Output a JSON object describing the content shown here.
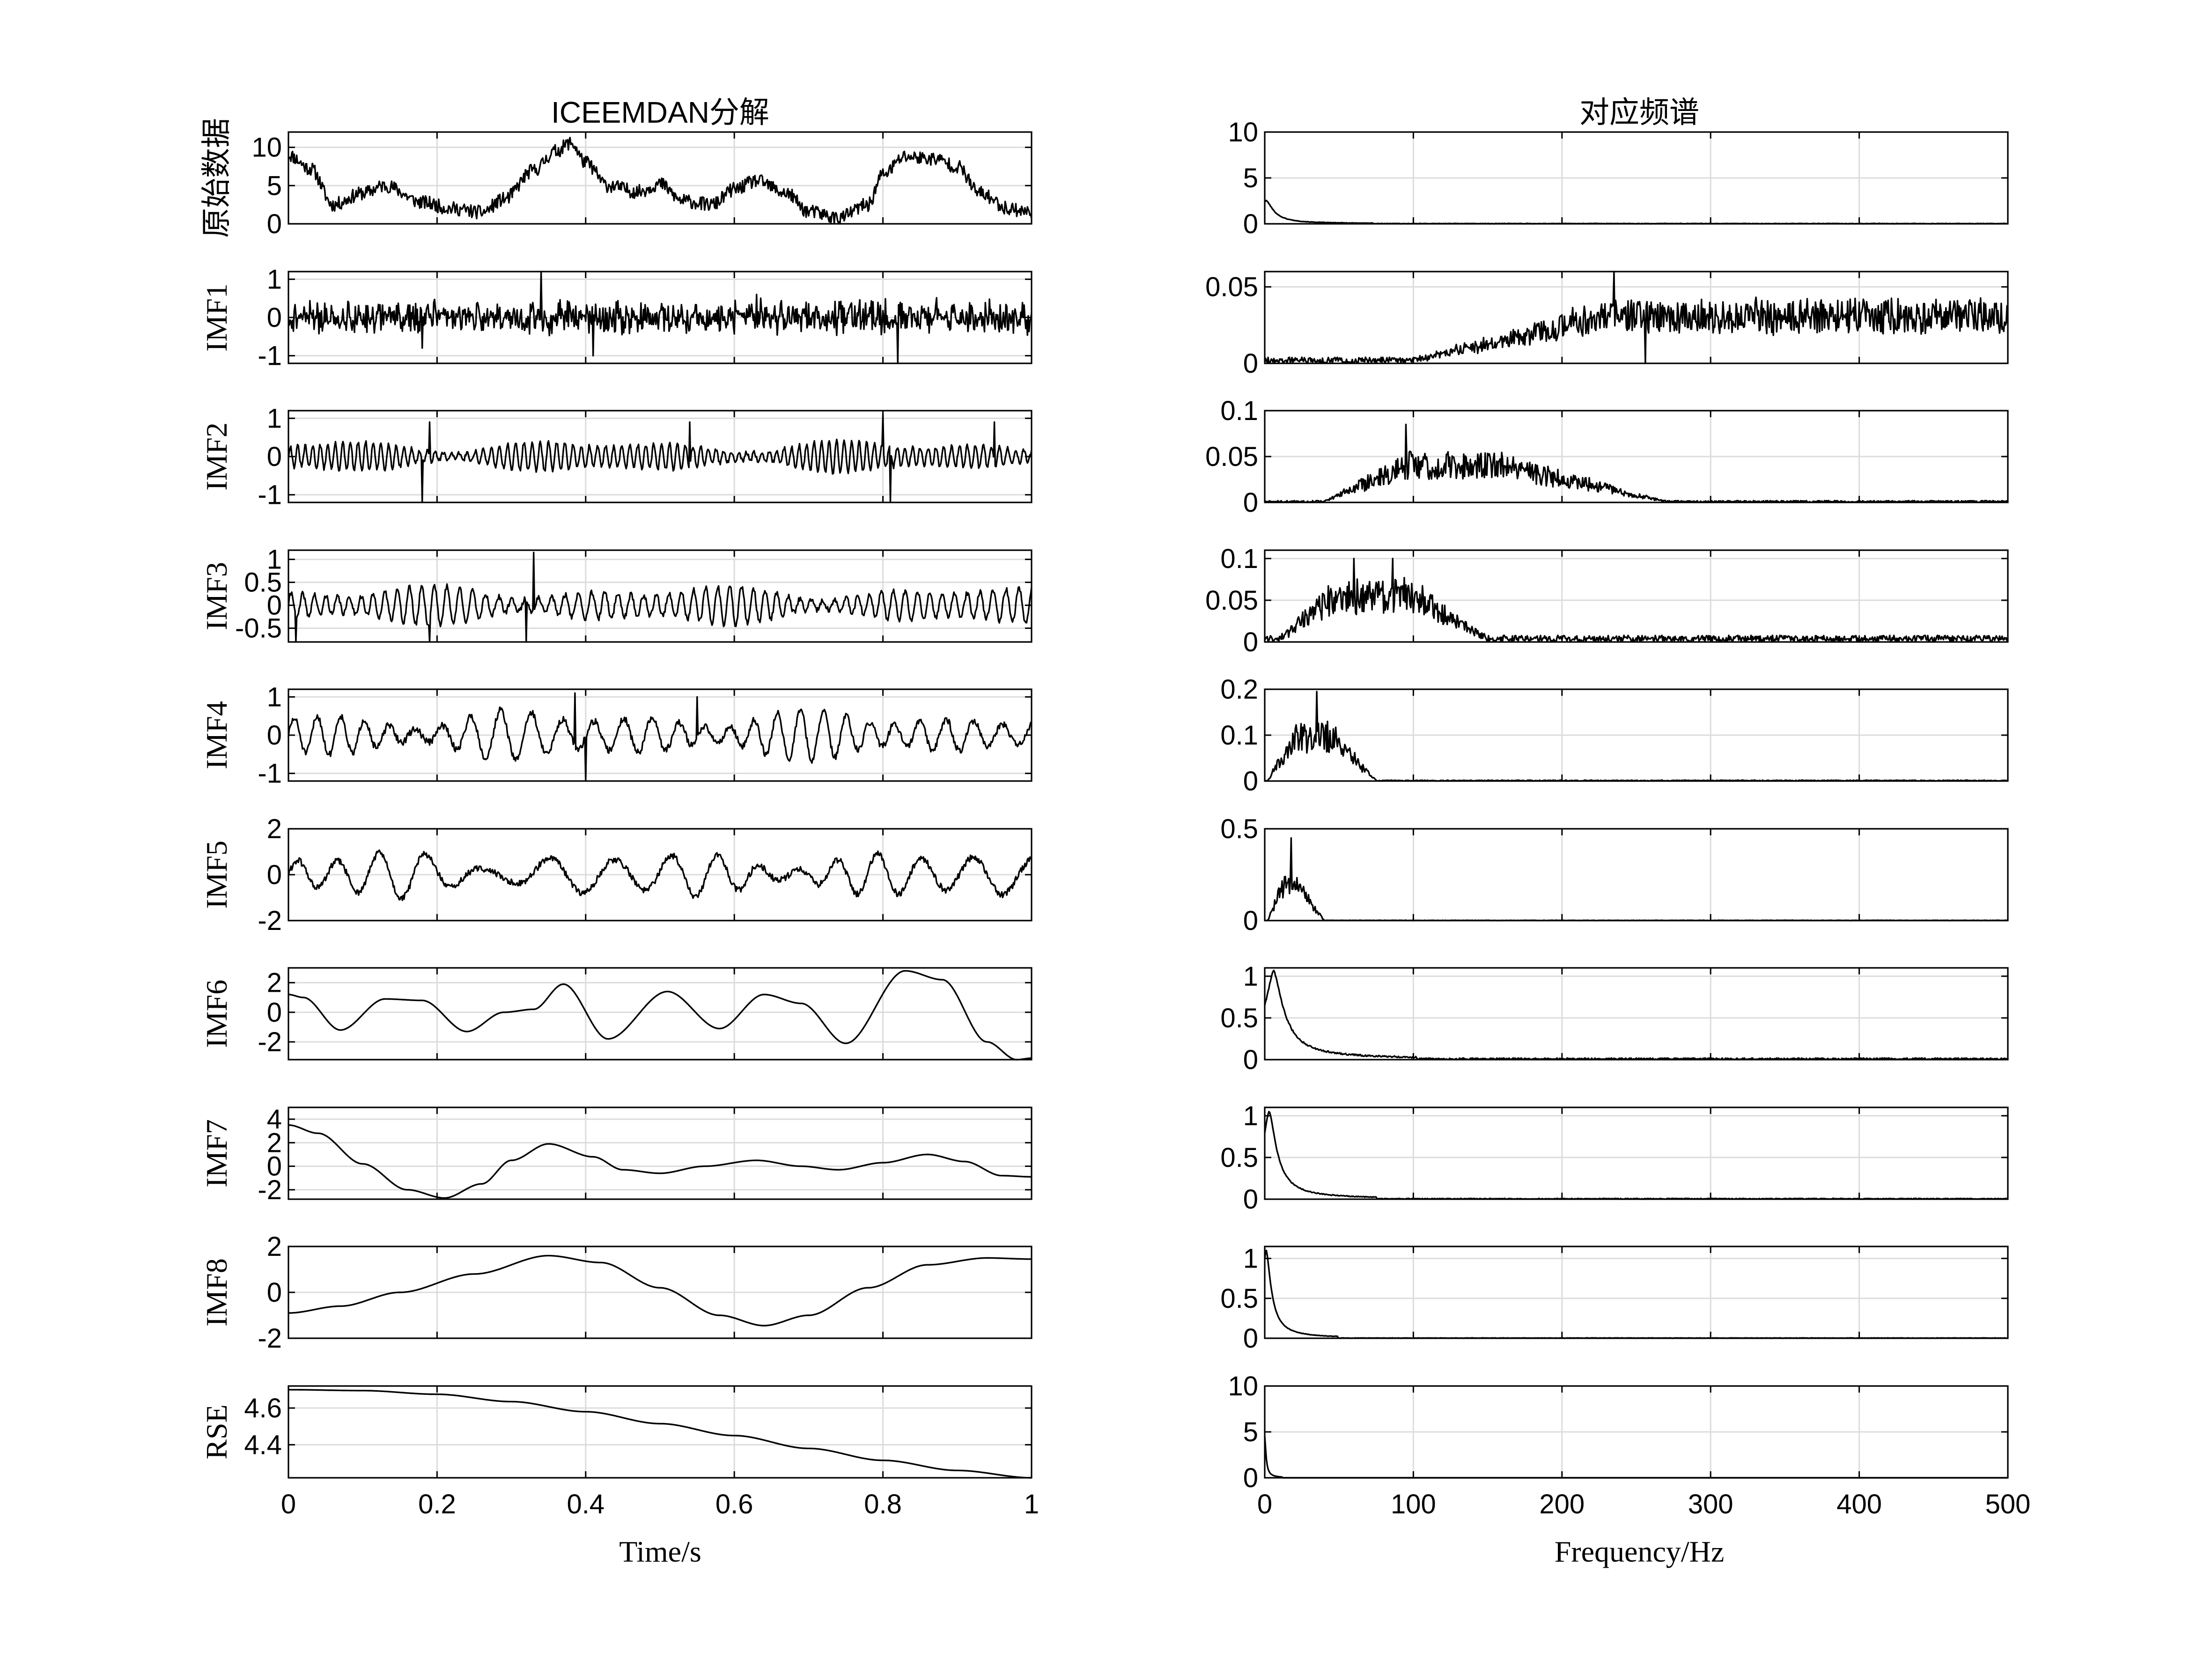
{
  "chart_data": [
    {
      "type": "line",
      "title": "ICEEMDAN分解",
      "xlabel": "Time/s",
      "xlim": [
        0,
        1
      ],
      "xticks": [
        "0",
        "0.2",
        "0.4",
        "0.6",
        "0.8",
        "1"
      ],
      "grid": true,
      "series": [
        {
          "name": "原始数据",
          "ylim": [
            0,
            12
          ],
          "yticks": [
            {
              "v": 0,
              "t": "0"
            },
            {
              "v": 5,
              "t": "5"
            },
            {
              "v": 10,
              "t": "10"
            }
          ],
          "points": [
            [
              0,
              9.0
            ],
            [
              0.03,
              7.2
            ],
            [
              0.06,
              2.5
            ],
            [
              0.1,
              4.0
            ],
            [
              0.13,
              5.0
            ],
            [
              0.18,
              2.8
            ],
            [
              0.22,
              2.0
            ],
            [
              0.26,
              1.5
            ],
            [
              0.29,
              3.2
            ],
            [
              0.33,
              7.0
            ],
            [
              0.36,
              9.5
            ],
            [
              0.38,
              10.6
            ],
            [
              0.4,
              8.0
            ],
            [
              0.43,
              5.0
            ],
            [
              0.47,
              4.2
            ],
            [
              0.5,
              5.2
            ],
            [
              0.53,
              3.0
            ],
            [
              0.57,
              2.5
            ],
            [
              0.6,
              4.5
            ],
            [
              0.63,
              5.6
            ],
            [
              0.67,
              4.0
            ],
            [
              0.7,
              1.6
            ],
            [
              0.74,
              0.8
            ],
            [
              0.78,
              2.5
            ],
            [
              0.8,
              6.5
            ],
            [
              0.83,
              8.8
            ],
            [
              0.87,
              8.5
            ],
            [
              0.9,
              7.5
            ],
            [
              0.93,
              4.0
            ],
            [
              0.97,
              2.0
            ],
            [
              1.0,
              1.5
            ]
          ],
          "noise": 0.9,
          "seed": 11
        },
        {
          "name": "IMF1",
          "ylim": [
            -1.2,
            1.2
          ],
          "yticks": [
            {
              "v": -1,
              "t": "-1"
            },
            {
              "v": 0,
              "t": "0"
            },
            {
              "v": 1,
              "t": "1"
            }
          ],
          "kind": "noise",
          "amp": 0.35,
          "seed": 21,
          "spikes": [
            [
              0.34,
              1.2
            ],
            [
              0.82,
              -1.2
            ],
            [
              0.18,
              -0.8
            ],
            [
              0.41,
              -1.0
            ],
            [
              0.63,
              0.6
            ]
          ]
        },
        {
          "name": "IMF2",
          "ylim": [
            -1.2,
            1.2
          ],
          "yticks": [
            {
              "v": -1,
              "t": "-1"
            },
            {
              "v": 0,
              "t": "0"
            },
            {
              "v": 1,
              "t": "1"
            }
          ],
          "kind": "osc",
          "freq": 95,
          "amp": 0.45,
          "seed": 31,
          "spikes": [
            [
              0.18,
              -1.2
            ],
            [
              0.81,
              -1.2
            ],
            [
              0.8,
              1.1
            ],
            [
              0.54,
              0.9
            ],
            [
              0.19,
              0.9
            ],
            [
              0.95,
              0.9
            ]
          ]
        },
        {
          "name": "IMF3",
          "ylim": [
            -0.8,
            1.2
          ],
          "yticks": [
            {
              "v": -0.5,
              "t": "-0.5"
            },
            {
              "v": 0,
              "t": "0"
            },
            {
              "v": 0.5,
              "t": "0.5"
            },
            {
              "v": 1,
              "t": "1"
            }
          ],
          "kind": "osc",
          "freq": 60,
          "amp": 0.45,
          "seed": 41,
          "spikes": [
            [
              0.33,
              1.15
            ],
            [
              0.32,
              -0.8
            ],
            [
              0.19,
              -0.8
            ],
            [
              0.01,
              -0.8
            ]
          ]
        },
        {
          "name": "IMF4",
          "ylim": [
            -1.2,
            1.2
          ],
          "yticks": [
            {
              "v": -1,
              "t": "-1"
            },
            {
              "v": 0,
              "t": "0"
            },
            {
              "v": 1,
              "t": "1"
            }
          ],
          "kind": "osc",
          "freq": 28,
          "amp": 0.7,
          "seed": 51,
          "spikes": [
            [
              0.385,
              1.1
            ],
            [
              0.4,
              -1.2
            ],
            [
              0.55,
              1.0
            ]
          ]
        },
        {
          "name": "IMF5",
          "ylim": [
            -2,
            2
          ],
          "yticks": [
            {
              "v": -2,
              "t": "-2"
            },
            {
              "v": 0,
              "t": "0"
            },
            {
              "v": 2,
              "t": "2"
            }
          ],
          "kind": "osc",
          "freq": 15,
          "amp": 1.1,
          "seed": 61,
          "spikes": []
        },
        {
          "name": "IMF6",
          "ylim": [
            -3.2,
            3.0
          ],
          "yticks": [
            {
              "v": -2,
              "t": "-2"
            },
            {
              "v": 0,
              "t": "0"
            },
            {
              "v": 2,
              "t": "2"
            }
          ],
          "points": [
            [
              0,
              1.2
            ],
            [
              0.02,
              1.0
            ],
            [
              0.07,
              -1.2
            ],
            [
              0.13,
              0.9
            ],
            [
              0.18,
              0.8
            ],
            [
              0.24,
              -1.3
            ],
            [
              0.29,
              0.0
            ],
            [
              0.33,
              0.2
            ],
            [
              0.37,
              1.9
            ],
            [
              0.43,
              -1.8
            ],
            [
              0.51,
              1.4
            ],
            [
              0.58,
              -1.1
            ],
            [
              0.64,
              1.2
            ],
            [
              0.69,
              0.6
            ],
            [
              0.75,
              -2.1
            ],
            [
              0.83,
              2.8
            ],
            [
              0.88,
              2.2
            ],
            [
              0.94,
              -2.0
            ],
            [
              0.98,
              -3.2
            ],
            [
              1.0,
              -3.1
            ]
          ],
          "smooth": true
        },
        {
          "name": "IMF7",
          "ylim": [
            -2.8,
            5.0
          ],
          "yticks": [
            {
              "v": -2,
              "t": "-2"
            },
            {
              "v": 0,
              "t": "0"
            },
            {
              "v": 2,
              "t": "2"
            },
            {
              "v": 4,
              "t": "4"
            }
          ],
          "points": [
            [
              0,
              3.5
            ],
            [
              0.04,
              2.8
            ],
            [
              0.1,
              0.2
            ],
            [
              0.16,
              -2.0
            ],
            [
              0.21,
              -2.7
            ],
            [
              0.26,
              -1.5
            ],
            [
              0.3,
              0.5
            ],
            [
              0.35,
              1.9
            ],
            [
              0.41,
              0.8
            ],
            [
              0.45,
              -0.3
            ],
            [
              0.5,
              -0.6
            ],
            [
              0.56,
              0.0
            ],
            [
              0.63,
              0.5
            ],
            [
              0.69,
              0.0
            ],
            [
              0.74,
              -0.3
            ],
            [
              0.8,
              0.3
            ],
            [
              0.86,
              1.0
            ],
            [
              0.91,
              0.4
            ],
            [
              0.96,
              -0.8
            ],
            [
              1.0,
              -0.9
            ]
          ],
          "smooth": true
        },
        {
          "name": "IMF8",
          "ylim": [
            -2,
            2
          ],
          "yticks": [
            {
              "v": -2,
              "t": "-2"
            },
            {
              "v": 0,
              "t": "0"
            },
            {
              "v": 2,
              "t": "2"
            }
          ],
          "points": [
            [
              0,
              -0.9
            ],
            [
              0.07,
              -0.6
            ],
            [
              0.15,
              0.0
            ],
            [
              0.25,
              0.8
            ],
            [
              0.35,
              1.6
            ],
            [
              0.42,
              1.3
            ],
            [
              0.5,
              0.2
            ],
            [
              0.58,
              -1.0
            ],
            [
              0.64,
              -1.45
            ],
            [
              0.7,
              -1.0
            ],
            [
              0.78,
              0.2
            ],
            [
              0.86,
              1.2
            ],
            [
              0.94,
              1.5
            ],
            [
              1.0,
              1.45
            ]
          ],
          "smooth": true
        },
        {
          "name": "RSE",
          "ylim": [
            4.22,
            4.72
          ],
          "yticks": [
            {
              "v": 4.4,
              "t": "4.4"
            },
            {
              "v": 4.6,
              "t": "4.6"
            }
          ],
          "points": [
            [
              0,
              4.7
            ],
            [
              0.1,
              4.695
            ],
            [
              0.2,
              4.675
            ],
            [
              0.3,
              4.635
            ],
            [
              0.4,
              4.58
            ],
            [
              0.5,
              4.515
            ],
            [
              0.6,
              4.45
            ],
            [
              0.7,
              4.38
            ],
            [
              0.8,
              4.315
            ],
            [
              0.9,
              4.26
            ],
            [
              1.0,
              4.22
            ]
          ],
          "smooth": true
        }
      ]
    },
    {
      "type": "line",
      "title": "对应频谱",
      "xlabel": "Frequency/Hz",
      "xlim": [
        0,
        500
      ],
      "xticks": [
        "0",
        "100",
        "200",
        "300",
        "400",
        "500"
      ],
      "grid": true,
      "series": [
        {
          "name": "原始数据",
          "ylim": [
            0,
            10
          ],
          "yticks": [
            {
              "v": 0,
              "t": "0"
            },
            {
              "v": 5,
              "t": "5"
            },
            {
              "v": 10,
              "t": "10"
            }
          ],
          "kind": "lowpeak",
          "peak_freq": 1,
          "peak": 2.5,
          "width": 6,
          "floor": 0.05,
          "seed": 101
        },
        {
          "name": "IMF1",
          "ylim": [
            0,
            0.06
          ],
          "yticks": [
            {
              "v": 0,
              "t": "0"
            },
            {
              "v": 0.05,
              "t": "0.05"
            }
          ],
          "kind": "band",
          "band": [
            230,
            500
          ],
          "rise": [
            100,
            230
          ],
          "peak": 0.03,
          "noise": 0.022,
          "floor": 0.004,
          "seed": 111,
          "spikes": [
            [
              235,
              0.06
            ],
            [
              256,
              0.0
            ]
          ]
        },
        {
          "name": "IMF2",
          "ylim": [
            0,
            0.1
          ],
          "yticks": [
            {
              "v": 0,
              "t": "0"
            },
            {
              "v": 0.05,
              "t": "0.05"
            },
            {
              "v": 0.1,
              "t": "0.1"
            }
          ],
          "kind": "band",
          "band": [
            95,
            160
          ],
          "rise": [
            40,
            95
          ],
          "fall": [
            160,
            270
          ],
          "peak": 0.04,
          "noise": 0.03,
          "floor": 0.002,
          "seed": 121,
          "spikes": [
            [
              95,
              0.085
            ]
          ]
        },
        {
          "name": "IMF3",
          "ylim": [
            0,
            0.11
          ],
          "yticks": [
            {
              "v": 0,
              "t": "0"
            },
            {
              "v": 0.05,
              "t": "0.05"
            },
            {
              "v": 0.1,
              "t": "0.1"
            }
          ],
          "kind": "band",
          "band": [
            45,
            100
          ],
          "rise": [
            10,
            45
          ],
          "fall": [
            100,
            150
          ],
          "peak": 0.05,
          "noise": 0.04,
          "floor": 0.008,
          "seed": 131,
          "spikes": [
            [
              60,
              0.1
            ],
            [
              86,
              0.1
            ]
          ]
        },
        {
          "name": "IMF4",
          "ylim": [
            0,
            0.2
          ],
          "yticks": [
            {
              "v": 0,
              "t": "0"
            },
            {
              "v": 0.1,
              "t": "0.1"
            },
            {
              "v": 0.2,
              "t": "0.2"
            }
          ],
          "kind": "band",
          "band": [
            20,
            45
          ],
          "rise": [
            2,
            20
          ],
          "fall": [
            45,
            75
          ],
          "peak": 0.1,
          "noise": 0.07,
          "floor": 0.002,
          "seed": 141,
          "spikes": [
            [
              35,
              0.195
            ]
          ]
        },
        {
          "name": "IMF5",
          "ylim": [
            0,
            0.5
          ],
          "yticks": [
            {
              "v": 0,
              "t": "0"
            },
            {
              "v": 0.5,
              "t": "0.5"
            }
          ],
          "kind": "band",
          "band": [
            12,
            22
          ],
          "rise": [
            2,
            12
          ],
          "fall": [
            22,
            40
          ],
          "peak": 0.2,
          "noise": 0.12,
          "floor": 0.002,
          "seed": 151,
          "spikes": [
            [
              18,
              0.45
            ]
          ]
        },
        {
          "name": "IMF6",
          "ylim": [
            0,
            1.1
          ],
          "yticks": [
            {
              "v": 0,
              "t": "0"
            },
            {
              "v": 0.5,
              "t": "0.5"
            },
            {
              "v": 1,
              "t": "1"
            }
          ],
          "kind": "lowpeak",
          "peak_freq": 6,
          "peak": 1.05,
          "width": 8,
          "floor": 0.02,
          "seed": 161
        },
        {
          "name": "IMF7",
          "ylim": [
            0,
            1.1
          ],
          "yticks": [
            {
              "v": 0,
              "t": "0"
            },
            {
              "v": 0.5,
              "t": "0.5"
            },
            {
              "v": 1,
              "t": "1"
            }
          ],
          "kind": "lowpeak",
          "peak_freq": 3,
          "peak": 1.05,
          "width": 6,
          "floor": 0.01,
          "seed": 171
        },
        {
          "name": "IMF8",
          "ylim": [
            0,
            1.15
          ],
          "yticks": [
            {
              "v": 0,
              "t": "0"
            },
            {
              "v": 0.5,
              "t": "0.5"
            },
            {
              "v": 1,
              "t": "1"
            }
          ],
          "kind": "lowpeak",
          "peak_freq": 1,
          "peak": 1.1,
          "width": 4,
          "floor": 0.005,
          "seed": 181
        },
        {
          "name": "RSE",
          "ylim": [
            0,
            10
          ],
          "yticks": [
            {
              "v": 0,
              "t": "0"
            },
            {
              "v": 5,
              "t": "5"
            },
            {
              "v": 10,
              "t": "10"
            }
          ],
          "kind": "lowpeak",
          "peak_freq": 0,
          "peak": 4.5,
          "width": 1,
          "floor": 0.0,
          "seed": 191
        }
      ]
    }
  ]
}
